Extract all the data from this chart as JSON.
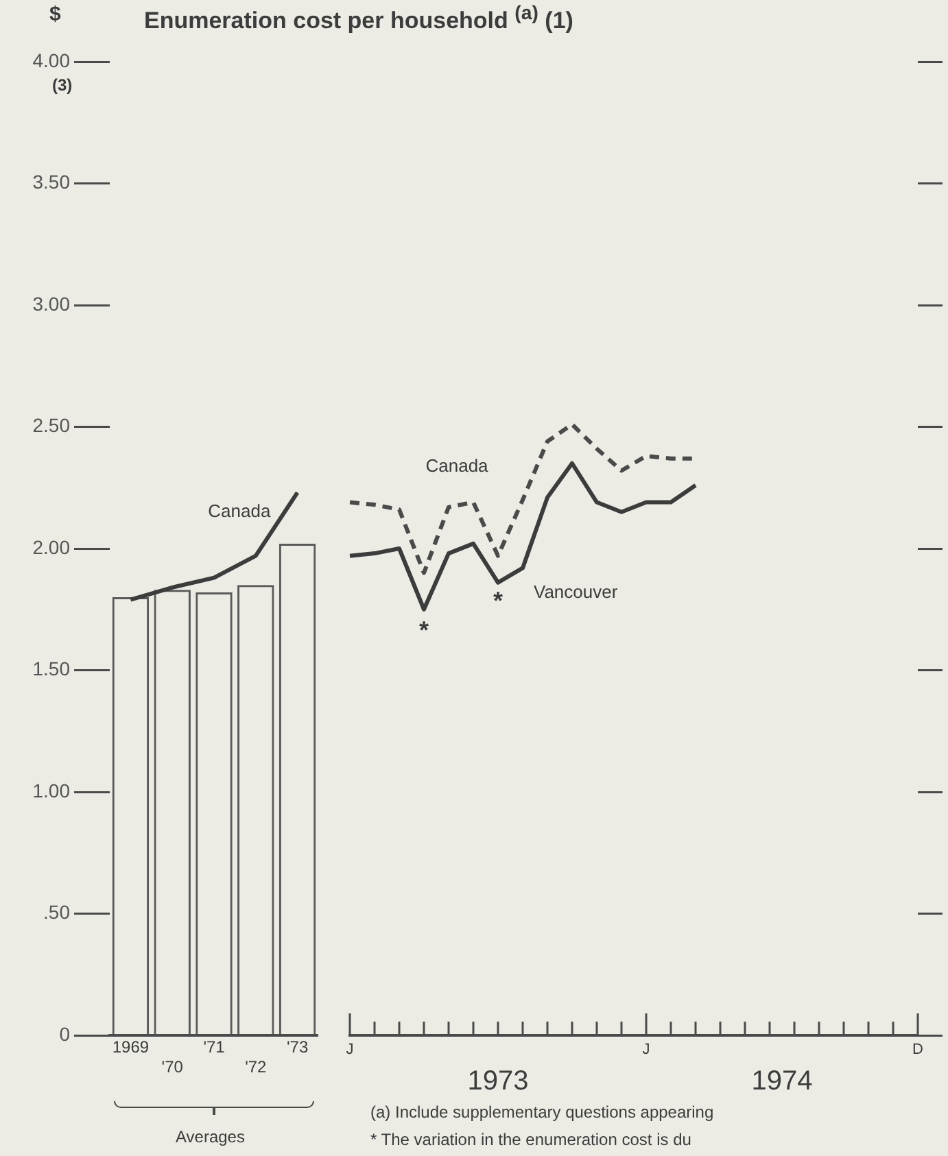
{
  "chart_data": [
    {
      "type": "bar",
      "title": "Enumeration cost per household $^{(a)}$ (1)",
      "ylabel": "$",
      "xlabel": "Averages",
      "categories": [
        "1969",
        "'70",
        "'71",
        "'72",
        "'73"
      ],
      "series": [
        {
          "color": "#5a5a5a",
          "values": [
            1.8,
            1.83,
            1.82,
            1.85,
            2.02
          ]
        },
        {
          "type": "line",
          "name": "Canada",
          "color": "#3c3c3c",
          "values": [
            1.79,
            1.84,
            1.88,
            1.97,
            2.23
          ]
        }
      ],
      "ylim": [
        0,
        4
      ],
      "yticks": [
        0,
        {
          "value": 0.5,
          "label": ".50"
        },
        {
          "value": 1,
          "label": "1.00"
        },
        {
          "value": 1.5,
          "label": "1.50"
        },
        {
          "value": 2,
          "label": "2.00"
        },
        {
          "value": 2.5,
          "label": "2.50"
        },
        {
          "value": 3,
          "label": "3.00"
        },
        {
          "value": 3.5,
          "label": "3.50"
        },
        {
          "value": 4,
          "label": "4.00"
        }
      ],
      "marker": "none",
      "legend": false,
      "grid": false,
      "annotations": [
        "(3)"
      ]
    },
    {
      "type": "line",
      "categories": [
        "J",
        null,
        null,
        null,
        null,
        null,
        null,
        null,
        null,
        null,
        null,
        null,
        "J",
        null,
        null,
        null,
        null,
        null,
        null,
        null,
        null,
        null,
        null,
        "D"
      ],
      "series": [
        {
          "name": "Canada",
          "color": "#4a4a4a",
          "line_style": "dashed",
          "values": [
            2.19,
            2.18,
            2.16,
            1.9,
            2.17,
            2.19,
            1.97,
            2.2,
            2.44,
            2.51,
            2.41,
            2.32,
            2.38,
            2.37,
            2.37,
            null,
            null,
            null,
            null,
            null,
            null,
            null,
            null,
            null
          ]
        },
        {
          "name": "Vancouver",
          "color": "#3c3c3c",
          "values": [
            1.97,
            1.98,
            2.0,
            1.75,
            1.98,
            2.02,
            1.86,
            1.92,
            2.21,
            2.35,
            2.19,
            2.15,
            2.19,
            2.19,
            2.26,
            null,
            null,
            null,
            null,
            null,
            null,
            null,
            null,
            null
          ]
        }
      ],
      "ylim": [
        0,
        4
      ],
      "yticks": [
        0,
        0.5,
        1,
        1.5,
        2,
        2.5,
        3,
        3.5,
        4
      ],
      "tick_labels": "x",
      "marker": "none",
      "legend": false,
      "grid": false,
      "annotations": [
        "*",
        "*",
        "1973",
        "1974",
        "(a) Include supplementary questions appearing",
        "* The variation in the enumeration cost is du"
      ]
    }
  ]
}
